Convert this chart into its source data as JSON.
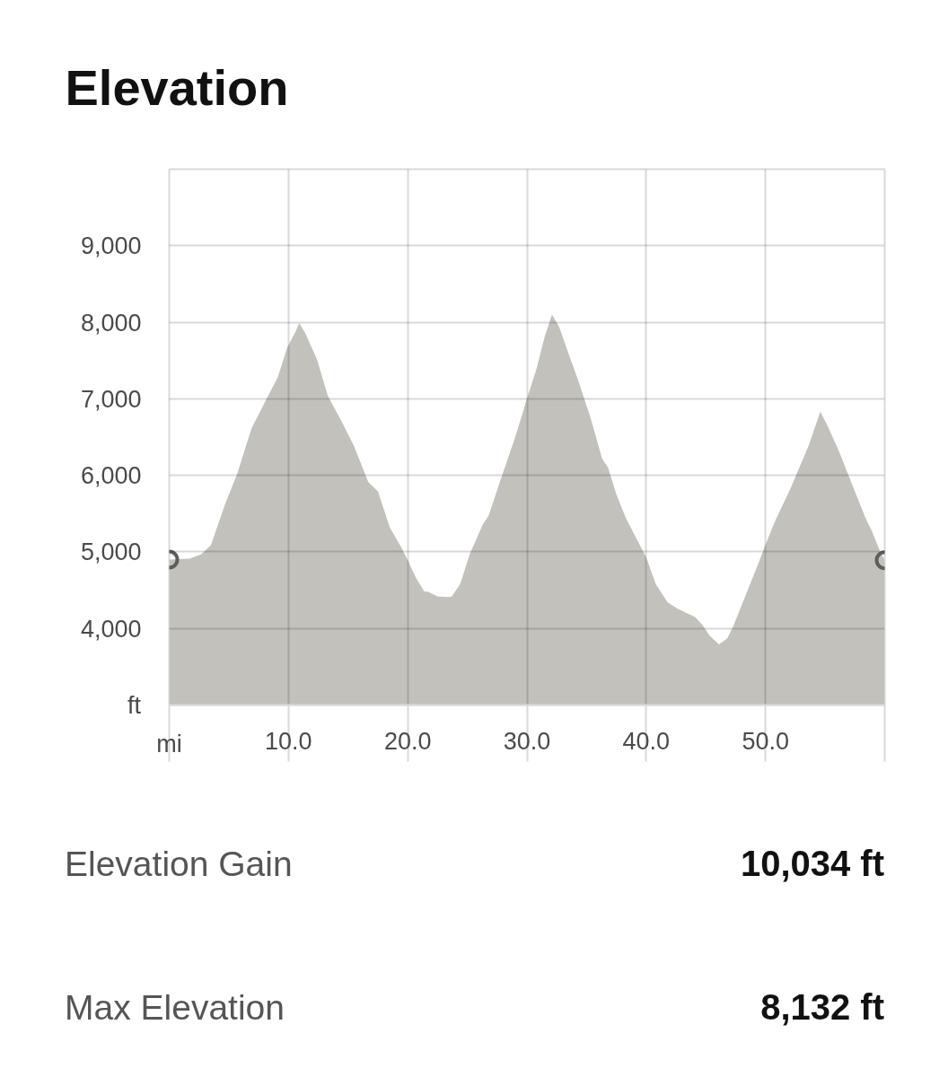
{
  "chart_data": {
    "type": "area",
    "title": "Elevation",
    "xlabel": "mi",
    "ylabel": "ft",
    "xlim": [
      0,
      60
    ],
    "ylim": [
      3000,
      10000
    ],
    "xticks": [
      {
        "value": 0,
        "label": null
      },
      {
        "value": 10,
        "label": "10.0"
      },
      {
        "value": 20,
        "label": "20.0"
      },
      {
        "value": 30,
        "label": "30.0"
      },
      {
        "value": 40,
        "label": "40.0"
      },
      {
        "value": 50,
        "label": "50.0"
      },
      {
        "value": 60,
        "label": null
      }
    ],
    "yticks": [
      {
        "value": 4000,
        "label": "4,000"
      },
      {
        "value": 5000,
        "label": "5,000"
      },
      {
        "value": 6000,
        "label": "6,000"
      },
      {
        "value": 7000,
        "label": "7,000"
      },
      {
        "value": 8000,
        "label": "8,000"
      },
      {
        "value": 9000,
        "label": "9,000"
      }
    ],
    "grid": true,
    "series": [
      {
        "color": "#c2c1bc",
        "x": [
          0.0,
          1.7,
          2.7,
          3.5,
          4.7,
          5.7,
          6.9,
          8.1,
          9.1,
          9.9,
          10.6,
          10.9,
          11.4,
          12.4,
          13.3,
          14.5,
          15.5,
          16.7,
          17.5,
          18.5,
          19.5,
          20.0,
          20.7,
          21.4,
          21.7,
          22.5,
          23.5,
          23.7,
          24.4,
          25.2,
          26.3,
          26.8,
          27.8,
          29.0,
          30.0,
          30.8,
          31.5,
          32.1,
          32.7,
          33.4,
          34.3,
          35.3,
          36.3,
          36.8,
          37.5,
          38.3,
          40.0,
          40.8,
          41.8,
          42.6,
          44.1,
          44.7,
          45.3,
          46.1,
          46.8,
          47.3,
          48.3,
          49.3,
          50.1,
          50.8,
          52.1,
          53.6,
          54.6,
          55.2,
          56.1,
          57.6,
          58.4,
          58.9,
          59.6,
          60.0
        ],
        "values": [
          4900,
          4910,
          4970,
          5090,
          5630,
          6020,
          6610,
          6980,
          7280,
          7670,
          7880,
          7990,
          7860,
          7510,
          7040,
          6690,
          6380,
          5910,
          5790,
          5320,
          5050,
          4890,
          4660,
          4480,
          4480,
          4420,
          4410,
          4420,
          4580,
          4970,
          5360,
          5480,
          5950,
          6490,
          7000,
          7390,
          7820,
          8100,
          7940,
          7630,
          7240,
          6770,
          6220,
          6100,
          5750,
          5440,
          4930,
          4580,
          4340,
          4260,
          4150,
          4050,
          3910,
          3790,
          3870,
          4030,
          4420,
          4810,
          5130,
          5400,
          5830,
          6380,
          6830,
          6650,
          6340,
          5750,
          5440,
          5280,
          5010,
          4890
        ]
      },
      {
        "type": "scatter",
        "color": "#5f5e5a",
        "marker": "circle",
        "x": [
          0,
          60
        ],
        "values": [
          4900,
          4890
        ]
      }
    ],
    "annotations": [
      "Elevation Gain",
      "10,034 ft",
      "Max Elevation",
      "8,132 ft"
    ]
  }
}
